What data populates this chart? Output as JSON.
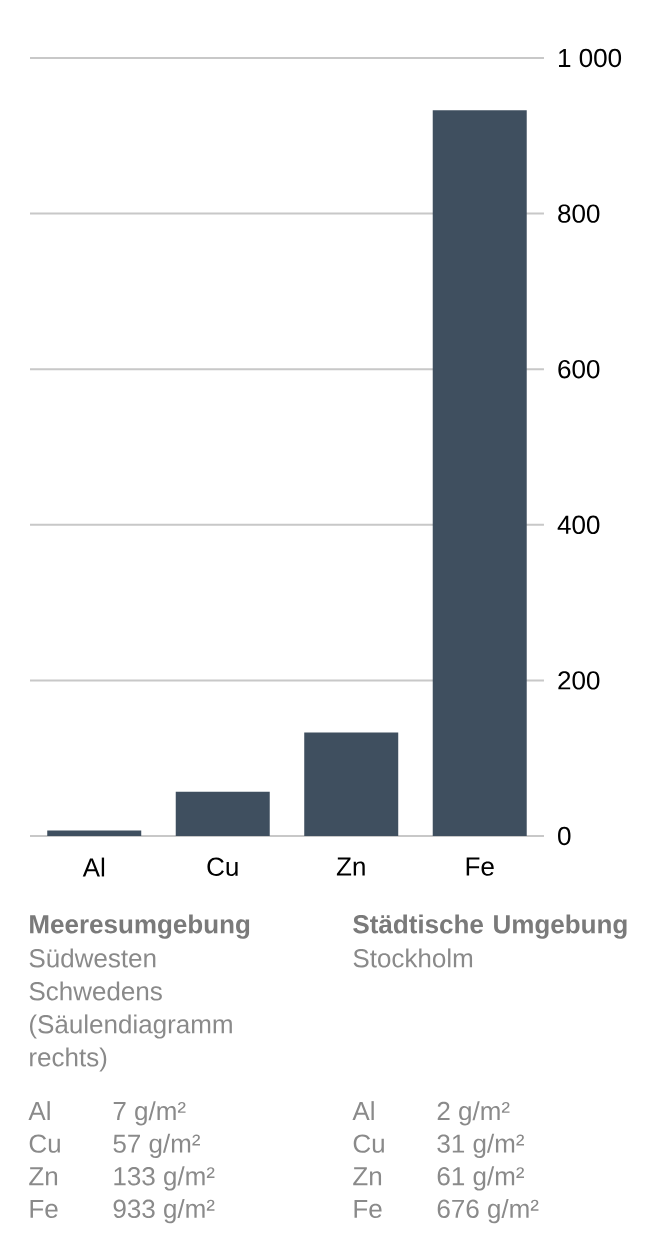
{
  "chart_data": {
    "type": "bar",
    "categories": [
      "Al",
      "Cu",
      "Zn",
      "Fe"
    ],
    "values": [
      7,
      57,
      133,
      933
    ],
    "color": "#3f4f5f",
    "ylim": [
      0,
      1000
    ],
    "yticks": [
      0,
      200,
      400,
      600,
      800,
      {
        "value": 1000,
        "label": "1 000"
      }
    ],
    "grid": "y",
    "annotations": [
      "Meeresumgebung",
      "Südwesten Schwedens (Säulendiagramm rechts)",
      "Städtische Umgebung",
      "Stockholm",
      "Al",
      "7 g/m²",
      "Cu",
      "57 g/m²",
      "Zn",
      "133 g/m²",
      "Fe",
      "933 g/m²",
      "Al",
      "2 g/m²",
      "Cu",
      "31 g/m²",
      "Zn",
      "61 g/m²",
      "Fe",
      "676 g/m²"
    ]
  }
}
